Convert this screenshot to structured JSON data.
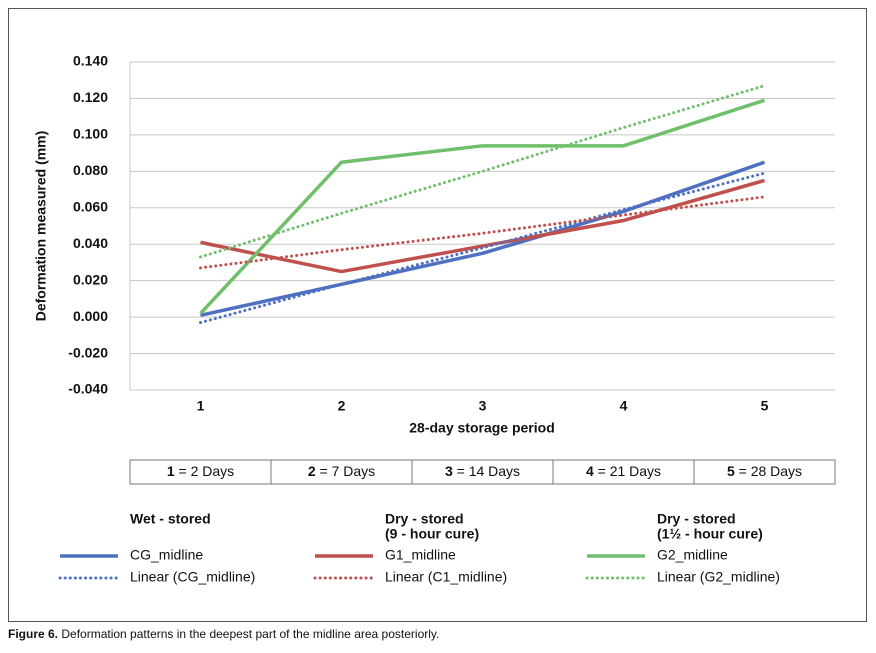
{
  "chart_data": {
    "type": "line",
    "y_label": "Deformation measured (mm)",
    "x_label": "28-day storage period",
    "categories": [
      "1",
      "2",
      "3",
      "4",
      "5"
    ],
    "ylim": [
      -0.04,
      0.14
    ],
    "yticks": [
      {
        "value": -0.04,
        "label": "-0.040"
      },
      {
        "value": -0.02,
        "label": "-0.020"
      },
      {
        "value": 0,
        "label": "0.000"
      },
      {
        "value": 0.02,
        "label": "0.020"
      },
      {
        "value": 0.04,
        "label": "0.040"
      },
      {
        "value": 0.06,
        "label": "0.060"
      },
      {
        "value": 0.08,
        "label": "0.080"
      },
      {
        "value": 0.1,
        "label": "0.100"
      },
      {
        "value": 0.12,
        "label": "0.120"
      },
      {
        "value": 0.14,
        "label": "0.140"
      }
    ],
    "grid": true,
    "series": [
      {
        "name": "CG_midline",
        "color": "#4f70c0",
        "style": "solid",
        "values": [
          0.001,
          0.018,
          0.035,
          0.058,
          0.085
        ]
      },
      {
        "name": "G1_midline",
        "color": "#c0504d",
        "style": "solid",
        "values": [
          0.041,
          0.025,
          0.039,
          0.053,
          0.075
        ]
      },
      {
        "name": "G2_midline",
        "color": "#6fbf6b",
        "style": "solid",
        "values": [
          0.002,
          0.085,
          0.094,
          0.094,
          0.119
        ]
      },
      {
        "name": "Linear (CG_midline)",
        "color": "#4f70c0",
        "style": "dotted",
        "values": [
          -0.003,
          0.018,
          0.038,
          0.059,
          0.079
        ]
      },
      {
        "name": "Linear (C1_midline)",
        "color": "#c0504d",
        "style": "dotted",
        "values": [
          0.027,
          0.037,
          0.046,
          0.056,
          0.066
        ]
      },
      {
        "name": "Linear (G2_midline)",
        "color": "#6fbf6b",
        "style": "dotted",
        "values": [
          0.033,
          0.057,
          0.08,
          0.104,
          0.127
        ]
      }
    ],
    "legend_groups": [
      [
        "Wet - stored"
      ],
      [
        "Dry - stored",
        "(9 - hour cure)"
      ],
      [
        "Dry - stored",
        "(1½ - hour cure)"
      ]
    ],
    "period_table": [
      {
        "key": "1",
        "text": "= 2 Days"
      },
      {
        "key": "2",
        "text": "= 7 Days"
      },
      {
        "key": "3",
        "text": "= 14 Days"
      },
      {
        "key": "4",
        "text": "= 21 Days"
      },
      {
        "key": "5",
        "text": "= 28 Days"
      }
    ]
  },
  "caption": {
    "label": "Figure 6.",
    "text": "Deformation patterns in the deepest part of the midline area posteriorly."
  }
}
